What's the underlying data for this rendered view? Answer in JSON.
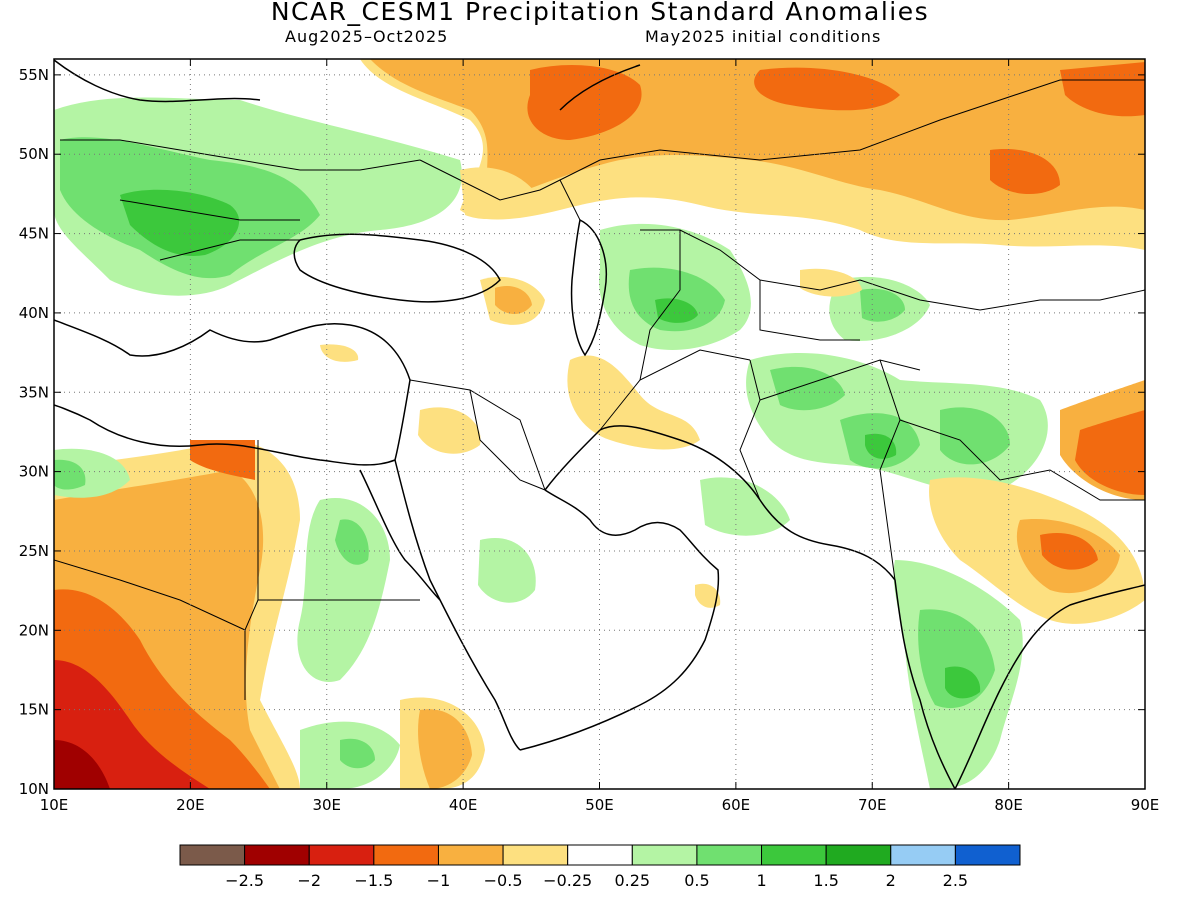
{
  "title": "NCAR_CESM1 Precipitation Standard Anomalies",
  "subtitle_left": "Aug2025–Oct2025",
  "subtitle_right": "May2025 initial conditions",
  "map": {
    "lon_range": [
      10,
      90
    ],
    "lat_range": [
      10,
      56
    ],
    "lon_ticks": [
      "10E",
      "20E",
      "30E",
      "40E",
      "50E",
      "60E",
      "70E",
      "80E",
      "90E"
    ],
    "lat_ticks": [
      "10N",
      "15N",
      "20N",
      "25N",
      "30N",
      "35N",
      "40N",
      "45N",
      "50N",
      "55N"
    ],
    "gridlines": true
  },
  "colorbar": {
    "colors": [
      "#7b5a4a",
      "#a00000",
      "#d82010",
      "#f26a10",
      "#f8b040",
      "#fde080",
      "#ffffff",
      "#b4f4a4",
      "#70e070",
      "#3cc83c",
      "#20aa20",
      "#96ccf4",
      "#1060d0"
    ],
    "labels": [
      "−2.5",
      "−2",
      "−1.5",
      "−1",
      "−0.5",
      "−0.25",
      "0.25",
      "0.5",
      "1",
      "1.5",
      "2",
      "2.5"
    ]
  }
}
